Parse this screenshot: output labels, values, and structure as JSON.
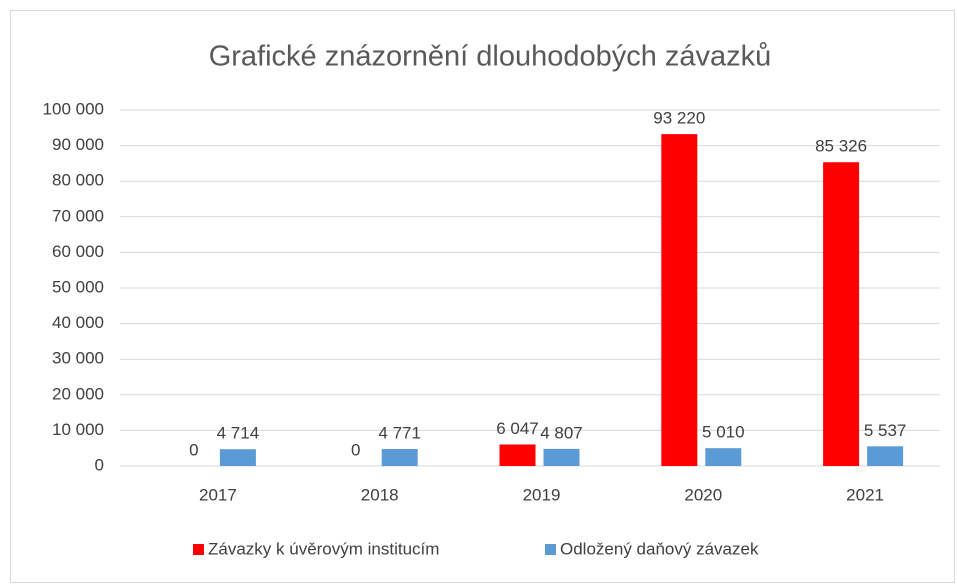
{
  "chart_data": {
    "type": "bar",
    "title": "Grafické znázornění dlouhodobých závazků",
    "categories": [
      "2017",
      "2018",
      "2019",
      "2020",
      "2021"
    ],
    "series": [
      {
        "name": "Závazky k úvěrovým institucím",
        "color": "#ff0000",
        "values": [
          0,
          0,
          6047,
          93220,
          85326
        ],
        "value_labels": [
          "0",
          "0",
          "6 047",
          "93 220",
          "85 326"
        ]
      },
      {
        "name": "Odložený daňový závazek",
        "color": "#5b9bd5",
        "values": [
          4714,
          4771,
          4807,
          5010,
          5537
        ],
        "value_labels": [
          "4 714",
          "4 771",
          "4 807",
          "5 010",
          "5 537"
        ]
      }
    ],
    "ylim": [
      0,
      100000
    ],
    "yticks": [
      0,
      {
        "value": 10000,
        "label": "10 000"
      },
      {
        "value": 20000,
        "label": "20 000"
      },
      {
        "value": 30000,
        "label": "30 000"
      },
      {
        "value": 40000,
        "label": "40 000"
      },
      {
        "value": 50000,
        "label": "50 000"
      },
      {
        "value": 60000,
        "label": "60 000"
      },
      {
        "value": 70000,
        "label": "70 000"
      },
      {
        "value": 80000,
        "label": "80 000"
      },
      {
        "value": 90000,
        "label": "90 000"
      },
      {
        "value": 100000,
        "label": "100 000"
      }
    ],
    "grid": true,
    "legend": "bottom"
  }
}
